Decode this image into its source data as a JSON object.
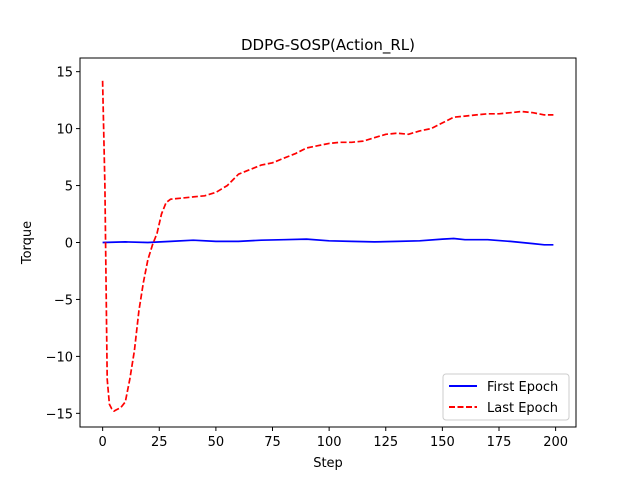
{
  "chart_data": {
    "type": "line",
    "title": "DDPG-SOSP(Action_RL)",
    "xlabel": "Step",
    "ylabel": "Torque",
    "xlim": [
      -10,
      209
    ],
    "ylim": [
      -16.2,
      16.2
    ],
    "xticks": [
      0,
      25,
      50,
      75,
      100,
      125,
      150,
      175,
      200
    ],
    "xtick_labels": [
      "0",
      "25",
      "50",
      "75",
      "100",
      "125",
      "150",
      "175",
      "200"
    ],
    "yticks": [
      -15,
      -10,
      -5,
      0,
      5,
      10,
      15
    ],
    "ytick_labels": [
      "−15",
      "−10",
      "−5",
      "0",
      "5",
      "10",
      "15"
    ],
    "grid": false,
    "legend_position": "lower-right",
    "series": [
      {
        "name": "First Epoch",
        "color": "#0000ff",
        "style": "solid",
        "x": [
          0,
          10,
          20,
          30,
          40,
          50,
          60,
          70,
          80,
          90,
          100,
          110,
          120,
          130,
          140,
          150,
          155,
          160,
          170,
          180,
          190,
          195,
          199
        ],
        "y": [
          0.0,
          0.05,
          0.0,
          0.1,
          0.2,
          0.1,
          0.1,
          0.2,
          0.25,
          0.3,
          0.15,
          0.1,
          0.05,
          0.1,
          0.15,
          0.3,
          0.35,
          0.25,
          0.25,
          0.1,
          -0.1,
          -0.2,
          -0.2
        ]
      },
      {
        "name": "Last Epoch",
        "color": "#ff0000",
        "style": "dashed",
        "x": [
          0,
          1,
          2,
          3,
          4,
          5,
          6,
          8,
          10,
          12,
          14,
          16,
          18,
          20,
          22,
          24,
          26,
          28,
          30,
          35,
          40,
          45,
          50,
          55,
          60,
          65,
          70,
          75,
          80,
          85,
          90,
          95,
          100,
          105,
          110,
          115,
          120,
          125,
          130,
          135,
          140,
          145,
          150,
          155,
          160,
          165,
          170,
          175,
          180,
          185,
          190,
          195,
          199
        ],
        "y": [
          14.2,
          5.0,
          -12.0,
          -14.2,
          -14.6,
          -14.8,
          -14.7,
          -14.5,
          -14.0,
          -12.0,
          -9.5,
          -6.0,
          -3.5,
          -1.5,
          -0.2,
          0.8,
          2.5,
          3.5,
          3.8,
          3.9,
          4.0,
          4.1,
          4.4,
          5.0,
          6.0,
          6.4,
          6.8,
          7.0,
          7.4,
          7.8,
          8.3,
          8.5,
          8.7,
          8.8,
          8.8,
          8.9,
          9.2,
          9.5,
          9.6,
          9.5,
          9.8,
          10.0,
          10.5,
          11.0,
          11.1,
          11.2,
          11.3,
          11.3,
          11.4,
          11.5,
          11.4,
          11.2,
          11.2
        ]
      }
    ]
  }
}
